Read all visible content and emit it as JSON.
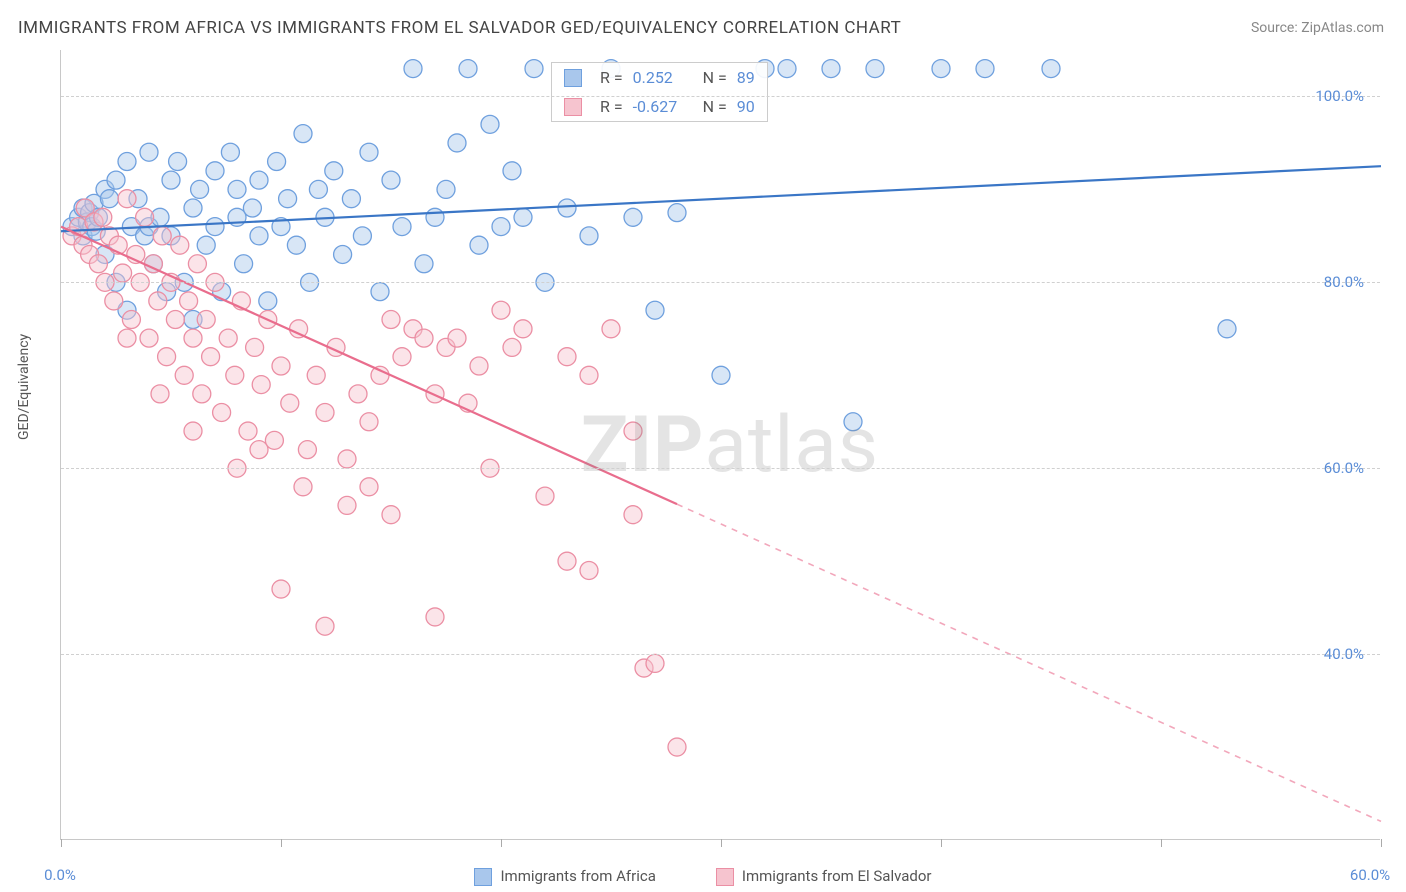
{
  "title": "IMMIGRANTS FROM AFRICA VS IMMIGRANTS FROM EL SALVADOR GED/EQUIVALENCY CORRELATION CHART",
  "source": "Source: ZipAtlas.com",
  "y_axis_label": "GED/Equivalency",
  "watermark": {
    "bold": "ZIP",
    "light": "atlas"
  },
  "colors": {
    "series_a_fill": "#a9c7ec",
    "series_a_stroke": "#6fa0de",
    "series_a_line": "#3a76c6",
    "series_b_fill": "#f6c4cf",
    "series_b_stroke": "#eb8fa4",
    "series_b_line": "#e96d8d",
    "tick_label": "#5b8dd6",
    "grid": "#d0d0d0",
    "axis": "#c8c8c8",
    "text": "#555555"
  },
  "chart": {
    "type": "scatter",
    "xlim": [
      0,
      60
    ],
    "ylim": [
      20,
      105
    ],
    "y_ticks": [
      40,
      60,
      80,
      100
    ],
    "y_tick_labels": [
      "40.0%",
      "60.0%",
      "80.0%",
      "100.0%"
    ],
    "x_ticks": [
      0,
      10,
      20,
      30,
      40,
      50,
      60
    ],
    "x_tick_labels_shown": [
      "0.0%",
      "60.0%"
    ],
    "marker_radius": 9,
    "marker_fill_opacity": 0.45,
    "marker_stroke_width": 1.3,
    "line_width": 2.2
  },
  "series": [
    {
      "id": "africa",
      "label": "Immigrants from Africa",
      "R": "0.252",
      "N": "89",
      "trend": {
        "x1": 0,
        "y1": 85.5,
        "x2": 60,
        "y2": 92.5,
        "solid_until_x": 60
      },
      "points": [
        [
          0.5,
          86
        ],
        [
          0.8,
          87
        ],
        [
          1,
          85
        ],
        [
          1,
          88
        ],
        [
          1.2,
          86.5
        ],
        [
          1.3,
          87.5
        ],
        [
          1.4,
          86
        ],
        [
          1.5,
          88.5
        ],
        [
          1.6,
          85.5
        ],
        [
          1.7,
          87
        ],
        [
          2,
          90
        ],
        [
          2,
          83
        ],
        [
          2.2,
          89
        ],
        [
          2.5,
          91
        ],
        [
          2.5,
          80
        ],
        [
          3,
          93
        ],
        [
          3,
          77
        ],
        [
          3.2,
          86
        ],
        [
          3.5,
          89
        ],
        [
          3.8,
          85
        ],
        [
          4,
          94
        ],
        [
          4,
          86
        ],
        [
          4.2,
          82
        ],
        [
          4.5,
          87
        ],
        [
          4.8,
          79
        ],
        [
          5,
          91
        ],
        [
          5,
          85
        ],
        [
          5.3,
          93
        ],
        [
          5.6,
          80
        ],
        [
          6,
          88
        ],
        [
          6,
          76
        ],
        [
          6.3,
          90
        ],
        [
          6.6,
          84
        ],
        [
          7,
          92
        ],
        [
          7,
          86
        ],
        [
          7.3,
          79
        ],
        [
          7.7,
          94
        ],
        [
          8,
          87
        ],
        [
          8,
          90
        ],
        [
          8.3,
          82
        ],
        [
          8.7,
          88
        ],
        [
          9,
          91
        ],
        [
          9,
          85
        ],
        [
          9.4,
          78
        ],
        [
          9.8,
          93
        ],
        [
          10,
          86
        ],
        [
          10.3,
          89
        ],
        [
          10.7,
          84
        ],
        [
          11,
          96
        ],
        [
          11.3,
          80
        ],
        [
          11.7,
          90
        ],
        [
          12,
          87
        ],
        [
          12.4,
          92
        ],
        [
          12.8,
          83
        ],
        [
          13.2,
          89
        ],
        [
          13.7,
          85
        ],
        [
          14,
          94
        ],
        [
          14.5,
          79
        ],
        [
          15,
          91
        ],
        [
          15.5,
          86
        ],
        [
          16,
          103
        ],
        [
          16.5,
          82
        ],
        [
          17,
          87
        ],
        [
          17.5,
          90
        ],
        [
          18,
          95
        ],
        [
          18.5,
          103
        ],
        [
          19,
          84
        ],
        [
          19.5,
          97
        ],
        [
          20,
          86
        ],
        [
          20.5,
          92
        ],
        [
          21,
          87
        ],
        [
          21.5,
          103
        ],
        [
          22,
          80
        ],
        [
          23,
          88
        ],
        [
          24,
          85
        ],
        [
          25,
          103
        ],
        [
          26,
          87
        ],
        [
          27,
          77
        ],
        [
          28,
          87.5
        ],
        [
          30,
          70
        ],
        [
          32,
          103
        ],
        [
          33,
          103
        ],
        [
          35,
          103
        ],
        [
          37,
          103
        ],
        [
          40,
          103
        ],
        [
          42,
          103
        ],
        [
          45,
          103
        ],
        [
          53,
          75
        ],
        [
          36,
          65
        ]
      ]
    },
    {
      "id": "elsalvador",
      "label": "Immigrants from El Salvador",
      "R": "-0.627",
      "N": "90",
      "trend": {
        "x1": 0,
        "y1": 86,
        "x2": 60,
        "y2": 22,
        "solid_until_x": 28
      },
      "points": [
        [
          0.5,
          85
        ],
        [
          0.8,
          86
        ],
        [
          1,
          84
        ],
        [
          1.1,
          88
        ],
        [
          1.3,
          83
        ],
        [
          1.5,
          86.5
        ],
        [
          1.7,
          82
        ],
        [
          1.9,
          87
        ],
        [
          2,
          80
        ],
        [
          2.2,
          85
        ],
        [
          2.4,
          78
        ],
        [
          2.6,
          84
        ],
        [
          2.8,
          81
        ],
        [
          3,
          89
        ],
        [
          3.2,
          76
        ],
        [
          3.4,
          83
        ],
        [
          3.6,
          80
        ],
        [
          3.8,
          87
        ],
        [
          4,
          74
        ],
        [
          4.2,
          82
        ],
        [
          4.4,
          78
        ],
        [
          4.6,
          85
        ],
        [
          4.8,
          72
        ],
        [
          5,
          80
        ],
        [
          5.2,
          76
        ],
        [
          5.4,
          84
        ],
        [
          5.6,
          70
        ],
        [
          5.8,
          78
        ],
        [
          6,
          74
        ],
        [
          6.2,
          82
        ],
        [
          6.4,
          68
        ],
        [
          6.6,
          76
        ],
        [
          6.8,
          72
        ],
        [
          7,
          80
        ],
        [
          7.3,
          66
        ],
        [
          7.6,
          74
        ],
        [
          7.9,
          70
        ],
        [
          8.2,
          78
        ],
        [
          8.5,
          64
        ],
        [
          8.8,
          73
        ],
        [
          9.1,
          69
        ],
        [
          9.4,
          76
        ],
        [
          9.7,
          63
        ],
        [
          10,
          71
        ],
        [
          10.4,
          67
        ],
        [
          10.8,
          75
        ],
        [
          11.2,
          62
        ],
        [
          11.6,
          70
        ],
        [
          12,
          66
        ],
        [
          12.5,
          73
        ],
        [
          13,
          61
        ],
        [
          13.5,
          68
        ],
        [
          14,
          65
        ],
        [
          14.5,
          70
        ],
        [
          15,
          76
        ],
        [
          15.5,
          72
        ],
        [
          16,
          75
        ],
        [
          16.5,
          74
        ],
        [
          17,
          68
        ],
        [
          17.5,
          73
        ],
        [
          18,
          74
        ],
        [
          18.5,
          67
        ],
        [
          19,
          71
        ],
        [
          19.5,
          60
        ],
        [
          20,
          77
        ],
        [
          20.5,
          73
        ],
        [
          21,
          75
        ],
        [
          22,
          57
        ],
        [
          23,
          72
        ],
        [
          24,
          70
        ],
        [
          25,
          75
        ],
        [
          26,
          64
        ],
        [
          10,
          47
        ],
        [
          12,
          43
        ],
        [
          17,
          44
        ],
        [
          23,
          50
        ],
        [
          24,
          49
        ],
        [
          26,
          55
        ],
        [
          26.5,
          38.5
        ],
        [
          27,
          39
        ],
        [
          28,
          30
        ],
        [
          8,
          60
        ],
        [
          9,
          62
        ],
        [
          6,
          64
        ],
        [
          4.5,
          68
        ],
        [
          3,
          74
        ],
        [
          11,
          58
        ],
        [
          13,
          56
        ],
        [
          14,
          58
        ],
        [
          15,
          55
        ]
      ]
    }
  ],
  "legend_bottom": [
    {
      "label": "Immigrants from Africa",
      "color_key": "a"
    },
    {
      "label": "Immigrants from El Salvador",
      "color_key": "b"
    }
  ],
  "legend_stat": {
    "rows": [
      {
        "color_key": "a",
        "r_label": "R =",
        "r_val": "0.252",
        "n_label": "N =",
        "n_val": "89"
      },
      {
        "color_key": "b",
        "r_label": "R =",
        "r_val": "-0.627",
        "n_label": "N =",
        "n_val": "90"
      }
    ]
  }
}
